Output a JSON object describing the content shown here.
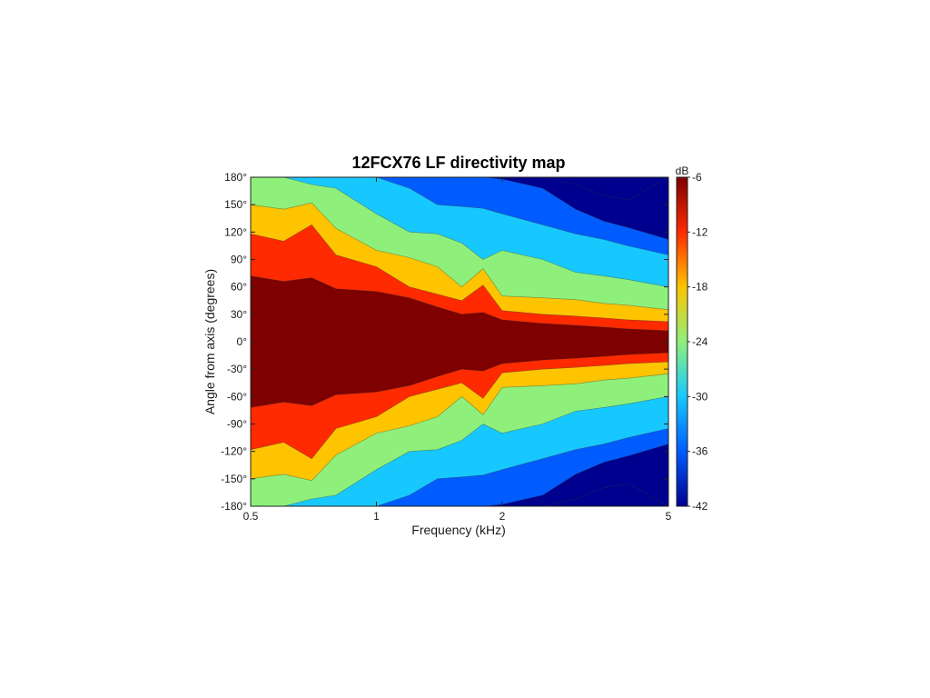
{
  "chart_data": {
    "type": "heatmap",
    "title": "12FCX76 LF directivity map",
    "xlabel": "Frequency (kHz)",
    "ylabel": "Angle from axis (degrees)",
    "x_scale": "log",
    "xlim": [
      0.5,
      5
    ],
    "ylim": [
      -180,
      180
    ],
    "x_ticks": [
      {
        "value": 0.5,
        "label": "0.5"
      },
      {
        "value": 1,
        "label": "1"
      },
      {
        "value": 2,
        "label": "2"
      },
      {
        "value": 5,
        "label": "5"
      }
    ],
    "y_ticks": [
      {
        "value": 180,
        "label": "180°"
      },
      {
        "value": 150,
        "label": "150°"
      },
      {
        "value": 120,
        "label": "120°"
      },
      {
        "value": 90,
        "label": "90°"
      },
      {
        "value": 60,
        "label": "60°"
      },
      {
        "value": 30,
        "label": "30°"
      },
      {
        "value": 0,
        "label": "0°"
      },
      {
        "value": -30,
        "label": "-30°"
      },
      {
        "value": -60,
        "label": "-60°"
      },
      {
        "value": -90,
        "label": "-90°"
      },
      {
        "value": -120,
        "label": "-120°"
      },
      {
        "value": -150,
        "label": "-150°"
      },
      {
        "value": -180,
        "label": "-180°"
      }
    ],
    "colorbar": {
      "label": "dB",
      "range": [
        -42,
        -6
      ],
      "ticks": [
        {
          "value": -6,
          "label": "-6"
        },
        {
          "value": -12,
          "label": "-12"
        },
        {
          "value": -18,
          "label": "-18"
        },
        {
          "value": -24,
          "label": "-24"
        },
        {
          "value": -30,
          "label": "-30"
        },
        {
          "value": -36,
          "label": "-36"
        },
        {
          "value": -42,
          "label": "-42"
        }
      ]
    },
    "levels": [
      {
        "min": -6,
        "color": "#7f0000"
      },
      {
        "min": -12,
        "color": "#ff2a00"
      },
      {
        "min": -18,
        "color": "#ffc400"
      },
      {
        "min": -24,
        "color": "#8ef07a"
      },
      {
        "min": -30,
        "color": "#17c8ff"
      },
      {
        "min": -36,
        "color": "#005cff"
      },
      {
        "min": -42,
        "color": "#00008f"
      }
    ],
    "contours": {
      "frequency_khz": [
        0.5,
        0.6,
        0.7,
        0.8,
        1.0,
        1.2,
        1.4,
        1.6,
        1.8,
        2.0,
        2.5,
        3.0,
        3.5,
        4.0,
        5.0
      ],
      "angle_at_-6dB": [
        72,
        66,
        70,
        58,
        55,
        48,
        38,
        30,
        32,
        24,
        20,
        18,
        16,
        14,
        12
      ],
      "angle_at_-12dB": [
        118,
        110,
        128,
        95,
        82,
        60,
        52,
        45,
        62,
        34,
        30,
        28,
        26,
        24,
        22
      ],
      "angle_at_-18dB": [
        150,
        145,
        152,
        124,
        100,
        92,
        82,
        60,
        80,
        50,
        48,
        46,
        42,
        40,
        35
      ],
      "angle_at_-24dB": [
        180,
        180,
        172,
        168,
        140,
        120,
        118,
        108,
        90,
        100,
        90,
        76,
        72,
        68,
        60
      ],
      "angle_at_-30dB": [
        180,
        180,
        180,
        180,
        180,
        168,
        150,
        148,
        146,
        140,
        128,
        118,
        112,
        105,
        95
      ],
      "angle_at_-36dB": [
        180,
        180,
        180,
        180,
        180,
        180,
        180,
        180,
        180,
        178,
        168,
        145,
        132,
        125,
        112
      ],
      "angle_at_-42dB": [
        180,
        180,
        180,
        180,
        180,
        180,
        180,
        180,
        180,
        180,
        180,
        172,
        160,
        155,
        180
      ]
    }
  }
}
